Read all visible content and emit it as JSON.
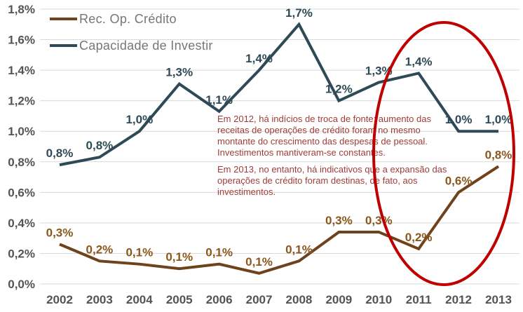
{
  "colors": {
    "background": "#FFFFFF",
    "grid": "#D9D9D9",
    "tick_text": "#545454",
    "legend_text": "#767676",
    "annotation_text": "#9E3C38",
    "highlight_ellipse": "#C00000"
  },
  "annotation": {
    "p1": "Em 2012, há indícios de troca de fonte: aumento das receitas de operações de crédito foram no mesmo montante do crescimento das despesas de pessoal. Investimentos mantiveram-se constantes.",
    "p2": "Em 2013, no entanto, há indicativos que a expansão das operações de crédito foram destinas, de fato, aos investimentos."
  },
  "chart_data": {
    "type": "line",
    "categories": [
      "2002",
      "2003",
      "2004",
      "2005",
      "2006",
      "2007",
      "2008",
      "2009",
      "2010",
      "2011",
      "2012",
      "2013"
    ],
    "series": [
      {
        "name": "Rec. Op. Crédito",
        "color": "#6E431C",
        "label_color": "#8A571C",
        "values": [
          0.26,
          0.15,
          0.13,
          0.1,
          0.13,
          0.07,
          0.15,
          0.34,
          0.34,
          0.23,
          0.6,
          0.77
        ],
        "point_labels": [
          "0,3%",
          "0,2%",
          "0,1%",
          "0,1%",
          "0,1%",
          "0,1%",
          "0,1%",
          "0,3%",
          "0,3%",
          "0,2%",
          "0,6%",
          "0,8%"
        ]
      },
      {
        "name": "Capacidade de Investir",
        "color": "#2E4A56",
        "label_color": "#2E4A56",
        "values": [
          0.78,
          0.83,
          1.0,
          1.31,
          1.13,
          1.4,
          1.7,
          1.2,
          1.32,
          1.38,
          1.0,
          1.0
        ],
        "point_labels": [
          "0,8%",
          "0,8%",
          "1,0%",
          "1,3%",
          "1,1%",
          "1,4%",
          "1,7%",
          "1,2%",
          "1,3%",
          "1,4%",
          "1,0%",
          "1,0%"
        ]
      }
    ],
    "title": "",
    "xlabel": "",
    "ylabel": "",
    "ylim": [
      0,
      1.8
    ],
    "ytick_step": 0.2,
    "ytick_labels": [
      "0,0%",
      "0,2%",
      "0,4%",
      "0,6%",
      "0,8%",
      "1,0%",
      "1,2%",
      "1,4%",
      "1,6%",
      "1,8%"
    ],
    "grid": true,
    "legend_position": "top-left",
    "highlight": {
      "shape": "ellipse",
      "color": "#C00000",
      "covers_categories": [
        "2011",
        "2012",
        "2013"
      ]
    }
  }
}
